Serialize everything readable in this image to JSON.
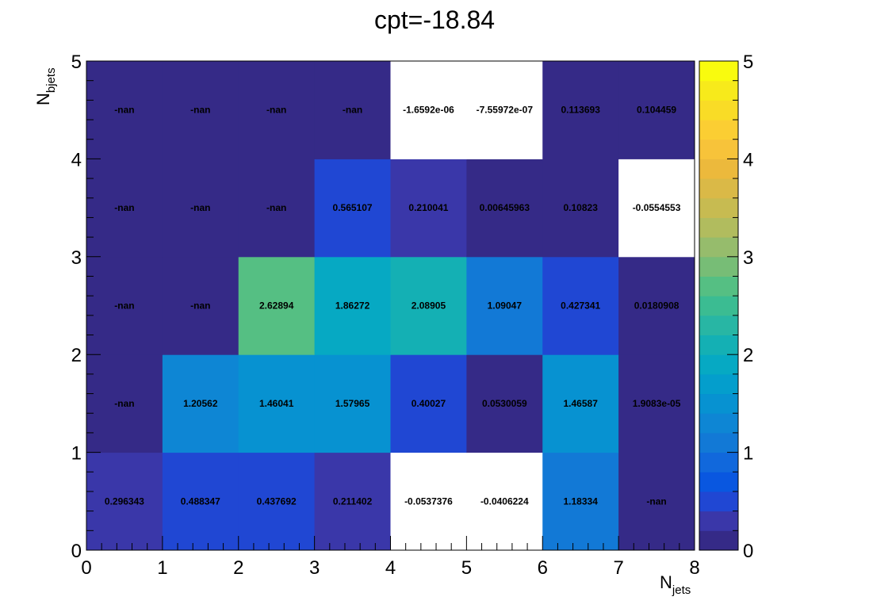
{
  "title": "cpt=-18.84",
  "chart_data": {
    "type": "heatmap",
    "title": "cpt=-18.84",
    "xlabel": {
      "main": "N",
      "sub": "jets"
    },
    "ylabel": {
      "main": "N",
      "sub": "bjets"
    },
    "x_edges": [
      0,
      1,
      2,
      3,
      4,
      5,
      6,
      7,
      8
    ],
    "y_edges": [
      0,
      1,
      2,
      3,
      4,
      5
    ],
    "xlim": [
      0,
      8
    ],
    "ylim": [
      0,
      5
    ],
    "zlim": [
      0,
      5
    ],
    "x_ticks": [
      "0",
      "1",
      "2",
      "3",
      "4",
      "5",
      "6",
      "7",
      "8"
    ],
    "y_ticks": [
      "0",
      "1",
      "2",
      "3",
      "4",
      "5"
    ],
    "z_ticks": [
      "0",
      "1",
      "2",
      "3",
      "4",
      "5"
    ],
    "colormap": "parula",
    "grid": false,
    "colorbar_position": "right",
    "cells": [
      {
        "x": 0,
        "y": 0,
        "label": "0.296343"
      },
      {
        "x": 1,
        "y": 0,
        "label": "0.488347"
      },
      {
        "x": 2,
        "y": 0,
        "label": "0.437692"
      },
      {
        "x": 3,
        "y": 0,
        "label": "0.211402"
      },
      {
        "x": 4,
        "y": 0,
        "label": "-0.0537376"
      },
      {
        "x": 5,
        "y": 0,
        "label": "-0.0406224"
      },
      {
        "x": 6,
        "y": 0,
        "label": "1.18334"
      },
      {
        "x": 7,
        "y": 0,
        "label": "-nan"
      },
      {
        "x": 0,
        "y": 1,
        "label": "-nan"
      },
      {
        "x": 1,
        "y": 1,
        "label": "1.20562"
      },
      {
        "x": 2,
        "y": 1,
        "label": "1.46041"
      },
      {
        "x": 3,
        "y": 1,
        "label": "1.57965"
      },
      {
        "x": 4,
        "y": 1,
        "label": "0.40027"
      },
      {
        "x": 5,
        "y": 1,
        "label": "0.0530059"
      },
      {
        "x": 6,
        "y": 1,
        "label": "1.46587"
      },
      {
        "x": 7,
        "y": 1,
        "label": "1.9083e-05"
      },
      {
        "x": 0,
        "y": 2,
        "label": "-nan"
      },
      {
        "x": 1,
        "y": 2,
        "label": "-nan"
      },
      {
        "x": 2,
        "y": 2,
        "label": "2.62894"
      },
      {
        "x": 3,
        "y": 2,
        "label": "1.86272"
      },
      {
        "x": 4,
        "y": 2,
        "label": "2.08905"
      },
      {
        "x": 5,
        "y": 2,
        "label": "1.09047"
      },
      {
        "x": 6,
        "y": 2,
        "label": "0.427341"
      },
      {
        "x": 7,
        "y": 2,
        "label": "0.0180908"
      },
      {
        "x": 0,
        "y": 3,
        "label": "-nan"
      },
      {
        "x": 1,
        "y": 3,
        "label": "-nan"
      },
      {
        "x": 2,
        "y": 3,
        "label": "-nan"
      },
      {
        "x": 3,
        "y": 3,
        "label": "0.565107"
      },
      {
        "x": 4,
        "y": 3,
        "label": "0.210041"
      },
      {
        "x": 5,
        "y": 3,
        "label": "0.00645963"
      },
      {
        "x": 6,
        "y": 3,
        "label": "0.10823"
      },
      {
        "x": 7,
        "y": 3,
        "label": "-0.0554553"
      },
      {
        "x": 0,
        "y": 4,
        "label": "-nan"
      },
      {
        "x": 1,
        "y": 4,
        "label": "-nan"
      },
      {
        "x": 2,
        "y": 4,
        "label": "-nan"
      },
      {
        "x": 3,
        "y": 4,
        "label": "-nan"
      },
      {
        "x": 4,
        "y": 4,
        "label": "-1.6592e-06"
      },
      {
        "x": 5,
        "y": 4,
        "label": "-7.55972e-07"
      },
      {
        "x": 6,
        "y": 4,
        "label": "0.113693"
      },
      {
        "x": 7,
        "y": 4,
        "label": "0.104459"
      }
    ],
    "nan_color": "#352a87",
    "below_range_color": "#ffffff",
    "palette": [
      "#352a87",
      "#3a37a9",
      "#2047d3",
      "#0957e0",
      "#1168dc",
      "#1279d6",
      "#0e86d4",
      "#0792d1",
      "#049ecc",
      "#06a9c3",
      "#14b0b4",
      "#28b6a4",
      "#3bbc92",
      "#55bf83",
      "#77bd76",
      "#96bc6c",
      "#b1bc5e",
      "#c7bb51",
      "#dab947",
      "#ecb93c",
      "#f7c33a",
      "#fbce33",
      "#f9dc26",
      "#f7ea1b",
      "#f9fb0e"
    ]
  }
}
